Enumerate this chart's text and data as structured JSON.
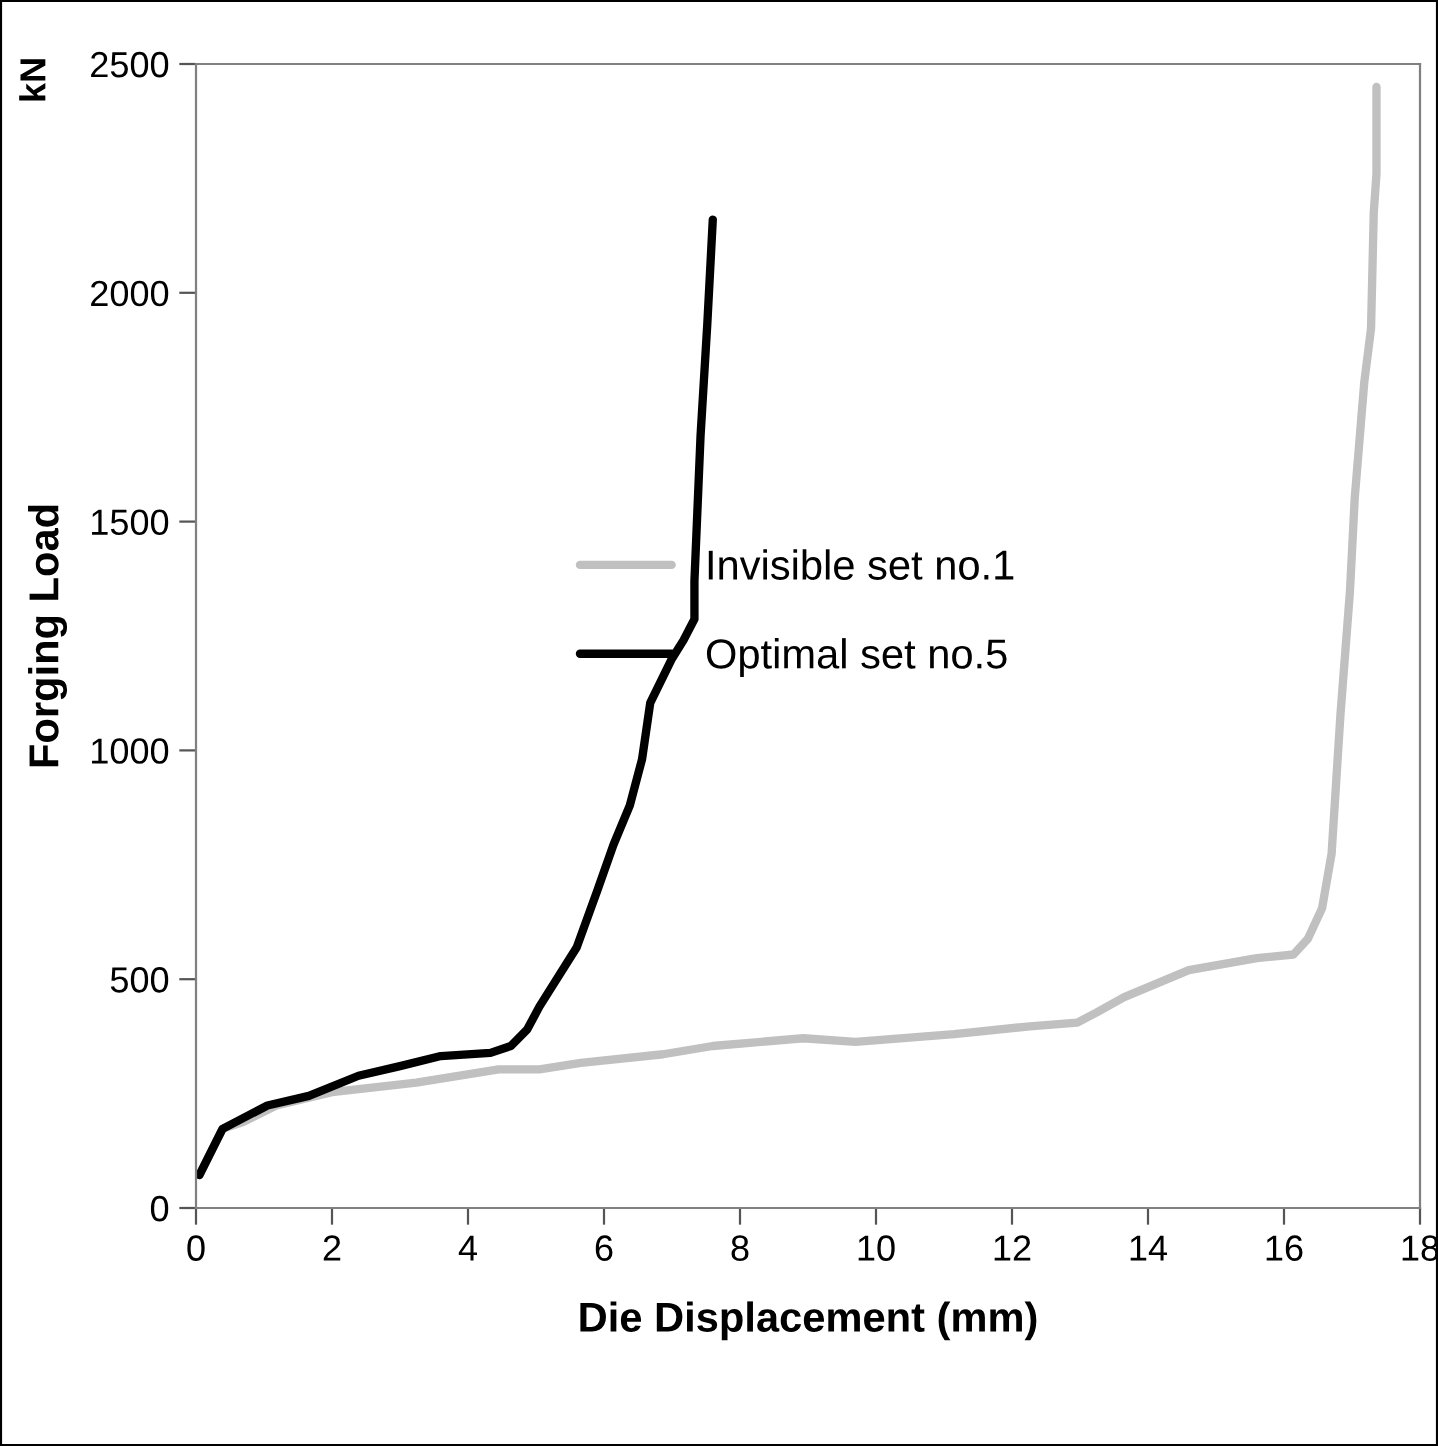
{
  "chart_data": {
    "type": "line",
    "xlabel": "Die Displacement (mm)",
    "ylabel": "Forging Load",
    "annotations": [
      "kN"
    ],
    "xlim": [
      0,
      18
    ],
    "ylim": [
      0,
      2500
    ],
    "xticks": [
      0,
      2,
      4,
      6,
      8,
      10,
      12,
      14,
      16,
      18
    ],
    "yticks": [
      0,
      500,
      1000,
      1500,
      2000,
      2500
    ],
    "grid": false,
    "legend": "right",
    "marker": "none",
    "line_style": "solid",
    "series": [
      {
        "name": "Invisible set no.1",
        "color": "#c0c0c0",
        "x": [
          0.05,
          0.39,
          0.69,
          1.18,
          2.0,
          3.24,
          4.45,
          5.05,
          5.66,
          6.87,
          7.6,
          8.93,
          9.7,
          11.15,
          12.26,
          12.96,
          13.24,
          13.65,
          14.6,
          15.6,
          16.14,
          16.35,
          16.56,
          16.7,
          16.83,
          16.97,
          17.04,
          17.18,
          17.28,
          17.32,
          17.36,
          17.36
        ],
        "values": [
          72,
          173,
          188,
          224,
          253,
          274,
          303,
          303,
          317,
          336,
          354,
          371,
          363,
          380,
          397,
          405,
          427,
          461,
          520,
          546,
          554,
          588,
          655,
          774,
          1078,
          1348,
          1551,
          1804,
          1922,
          2176,
          2260,
          2450
        ]
      },
      {
        "name": "Optimal set no.5",
        "color": "#000000",
        "x": [
          0.05,
          0.39,
          1.05,
          1.66,
          2.39,
          3.0,
          3.6,
          4.33,
          4.63,
          4.87,
          5.05,
          5.6,
          5.9,
          6.14,
          6.38,
          6.56,
          6.68,
          6.99,
          7.17,
          7.33,
          7.33,
          7.42,
          7.52,
          7.6
        ],
        "values": [
          72,
          173,
          224,
          245,
          289,
          310,
          332,
          339,
          354,
          390,
          440,
          570,
          693,
          794,
          880,
          981,
          1104,
          1198,
          1241,
          1287,
          1370,
          1688,
          1934,
          2160
        ]
      }
    ]
  }
}
